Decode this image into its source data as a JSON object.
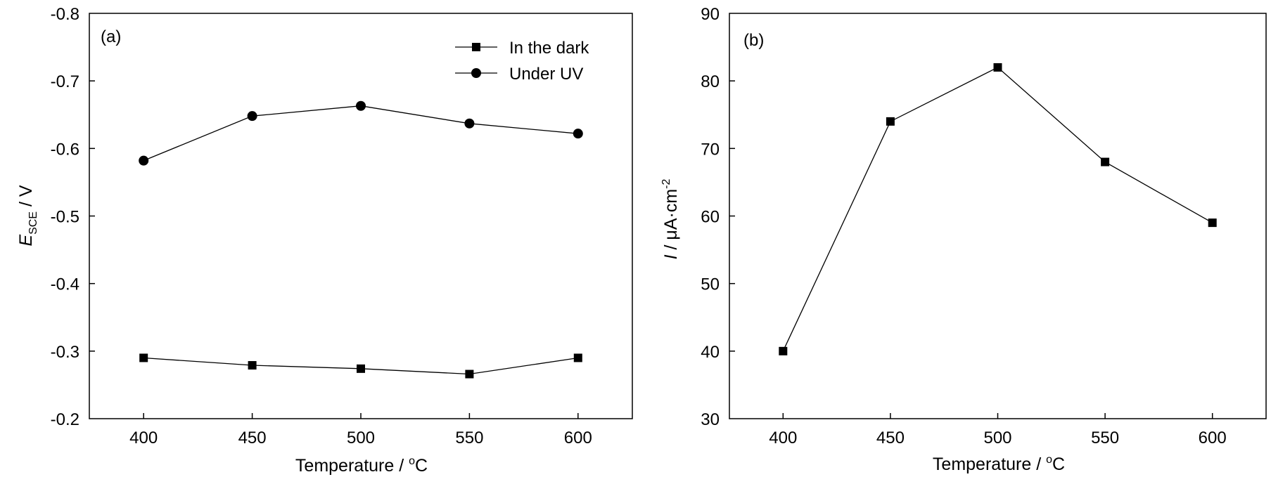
{
  "chart_data": [
    {
      "type": "line",
      "panel_label": "(a)",
      "xlabel": {
        "text": "Temperature / ",
        "sup": "o",
        "suffix": "C"
      },
      "ylabel": {
        "main": "E",
        "sub": "SCE",
        "suffix": " / V"
      },
      "x": [
        400,
        450,
        500,
        550,
        600
      ],
      "xlim": [
        375,
        625
      ],
      "xticks": [
        400,
        450,
        500,
        550,
        600
      ],
      "xtick_labels": [
        "400",
        "450",
        "500",
        "550",
        "600"
      ],
      "ylim": [
        -0.2,
        -0.8
      ],
      "yticks": [
        -0.2,
        -0.3,
        -0.4,
        -0.5,
        -0.6,
        -0.7,
        -0.8
      ],
      "ytick_labels": [
        "-0.2",
        "-0.3",
        "-0.4",
        "-0.5",
        "-0.6",
        "-0.7",
        "-0.8"
      ],
      "grid": false,
      "legend_position": "top-right",
      "series": [
        {
          "name": "In the dark",
          "marker": "square",
          "values": [
            -0.29,
            -0.279,
            -0.274,
            -0.266,
            -0.29
          ]
        },
        {
          "name": "Under UV",
          "marker": "circle",
          "values": [
            -0.582,
            -0.648,
            -0.663,
            -0.637,
            -0.622
          ]
        }
      ]
    },
    {
      "type": "line",
      "panel_label": "(b)",
      "xlabel": {
        "text": "Temperature / ",
        "sup": "o",
        "suffix": "C"
      },
      "ylabel": {
        "main": "I",
        "mid": " / μA·cm",
        "sup": "-2"
      },
      "x": [
        400,
        450,
        500,
        550,
        600
      ],
      "xlim": [
        375,
        625
      ],
      "xticks": [
        400,
        450,
        500,
        550,
        600
      ],
      "xtick_labels": [
        "400",
        "450",
        "500",
        "550",
        "600"
      ],
      "ylim": [
        30,
        90
      ],
      "yticks": [
        30,
        40,
        50,
        60,
        70,
        80,
        90
      ],
      "ytick_labels": [
        "30",
        "40",
        "50",
        "60",
        "70",
        "80",
        "90"
      ],
      "grid": false,
      "series": [
        {
          "marker": "square",
          "values": [
            40,
            74,
            82,
            68,
            59
          ]
        }
      ]
    }
  ]
}
